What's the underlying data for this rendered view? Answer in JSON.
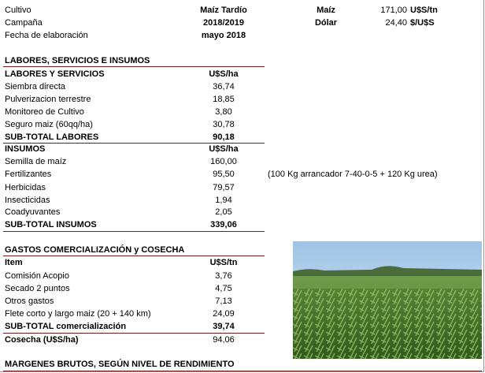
{
  "header": {
    "rows": [
      [
        "Cultivo",
        "Maíz Tardío"
      ],
      [
        "Campaña",
        "2018/2019"
      ],
      [
        "Fecha de elaboración",
        "mayo 2018"
      ]
    ],
    "prices": [
      [
        "Maíz",
        "171,00",
        "U$S/tn"
      ],
      [
        "Dólar",
        "24,40",
        "$/U$S"
      ]
    ]
  },
  "labores": {
    "title": "LABORES, SERVICIOS E INSUMOS",
    "services_header": [
      "LABORES Y SERVICIOS",
      "U$S/ha"
    ],
    "services": [
      [
        "Siembra directa",
        "36,74"
      ],
      [
        "Pulverizacion terrestre",
        "18,85"
      ],
      [
        "Monitoreo de Cultivo",
        "3,80"
      ],
      [
        "Seguro maiz (60qq/ha)",
        "30,78"
      ]
    ],
    "services_subtotal": [
      "SUB-TOTAL LABORES",
      "90,18"
    ],
    "insumos_header": [
      "INSUMOS",
      "U$S/ha"
    ],
    "insumos": [
      [
        "Semilla de maíz",
        "160,00"
      ],
      [
        "Fertilizantes",
        "95,50"
      ],
      [
        "Herbicidas",
        "79,57"
      ],
      [
        "Insecticidas",
        "1,94"
      ],
      [
        "Coadyuvantes",
        "2,05"
      ]
    ],
    "insumos_subtotal": [
      "SUB-TOTAL INSUMOS",
      "339,06"
    ],
    "note": "(100 Kg arrancador 7-40-0-5 + 120 Kg urea)"
  },
  "gastos": {
    "title": "GASTOS COMERCIALIZACIÓN y COSECHA",
    "header": [
      "Item",
      "U$S/tn"
    ],
    "rows": [
      [
        "Comisión Acopio",
        "3,76"
      ],
      [
        "Secado 2 puntos",
        "4,75"
      ],
      [
        "Otros gastos",
        "7,13"
      ],
      [
        "Flete corto y largo maiz  (20 + 140 km)",
        "24,09"
      ]
    ],
    "subtotal": [
      "SUB-TOTAL comercialización",
      "39,74"
    ],
    "cosecha": [
      "Cosecha  (U$S/ha)",
      "94,06"
    ]
  },
  "margenes": {
    "title": "MARGENES BRUTOS, SEGÚN NIVEL DE RENDIMIENTO"
  }
}
